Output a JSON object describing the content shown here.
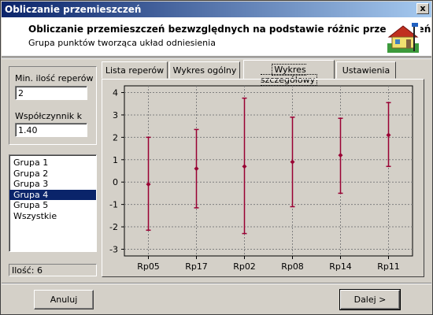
{
  "window": {
    "title": "Obliczanie przemieszczeń",
    "close_label": "x"
  },
  "header": {
    "title": "Obliczanie przemieszczeń bezwzględnych na podstawie różnic przewyższeń",
    "subtitle": "Grupa punktów tworząca układ odniesienia",
    "logo_icon": "house-survey-icon"
  },
  "params": {
    "min_label": "Min. ilość reperów",
    "min_value": "2",
    "k_label": "Współczynnik k",
    "k_value": "1.40"
  },
  "groups": {
    "items": [
      "Grupa 1",
      "Grupa 2",
      "Grupa 3",
      "Grupa 4",
      "Grupa 5",
      "Wszystkie"
    ],
    "selected": "Grupa 4"
  },
  "count_label": "Ilość: 6",
  "tabs": [
    "Lista reperów",
    "Wykres ogólny",
    "Wykres szczegółowy",
    "Ustawienia"
  ],
  "active_tab": "Wykres szczegółowy",
  "buttons": {
    "cancel": "Anuluj",
    "next": "Dalej >"
  },
  "colors": {
    "series": "#990033",
    "titlebar": "#0a246a",
    "selection": "#0a246a"
  },
  "chart_data": {
    "type": "scatter",
    "categories": [
      "Rp05",
      "Rp17",
      "Rp02",
      "Rp08",
      "Rp14",
      "Rp11"
    ],
    "values": [
      -0.1,
      0.6,
      0.7,
      0.9,
      1.2,
      2.1
    ],
    "upper": [
      2.0,
      2.35,
      3.75,
      2.9,
      2.85,
      3.55
    ],
    "lower": [
      -2.15,
      -1.15,
      -2.3,
      -1.1,
      -0.5,
      0.7
    ],
    "ylim": [
      -3.3,
      4.3
    ],
    "yticks": [
      -3,
      -2,
      -1,
      0,
      1,
      2,
      3,
      4
    ],
    "grid": true,
    "error_bars": true
  }
}
